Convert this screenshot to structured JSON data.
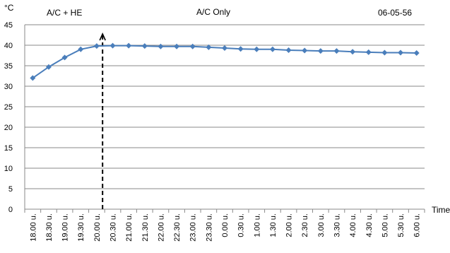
{
  "chart_data": {
    "type": "line",
    "ylabel": "°C",
    "xlabel": "Time",
    "annotations": {
      "left": "A/C + HE",
      "right": "A/C  Only",
      "date": "06-05-56"
    },
    "categories": [
      "18.00 u.",
      "18.30 u.",
      "19.00 u.",
      "19.30 u.",
      "20.00 u.",
      "20.30 u.",
      "21.00 u.",
      "21.30 u.",
      "22.00 u.",
      "22.30 u.",
      "23.00 u.",
      "23.30 u.",
      "0.00 u.",
      "0.30 u.",
      "1.00 u.",
      "1.30 u.",
      "2.00 u.",
      "2.30 u.",
      "3.00 u.",
      "3.30 u.",
      "4.00 u.",
      "4.30 u.",
      "5.00 u.",
      "5.30 u.",
      "6.00 u."
    ],
    "series": [
      {
        "color": "#4a7ebb",
        "marker": "diamond",
        "values": [
          32.0,
          34.7,
          37.0,
          39.0,
          39.8,
          39.9,
          39.9,
          39.8,
          39.7,
          39.7,
          39.7,
          39.5,
          39.3,
          39.1,
          39.0,
          39.0,
          38.8,
          38.7,
          38.6,
          38.6,
          38.4,
          38.3,
          38.2,
          38.2,
          38.1
        ]
      }
    ],
    "yticks": [
      0,
      5,
      10,
      15,
      20,
      25,
      30,
      35,
      40,
      45
    ],
    "ylim": [
      0,
      45
    ],
    "grid": true,
    "divider_after_category": "20.00 u."
  }
}
